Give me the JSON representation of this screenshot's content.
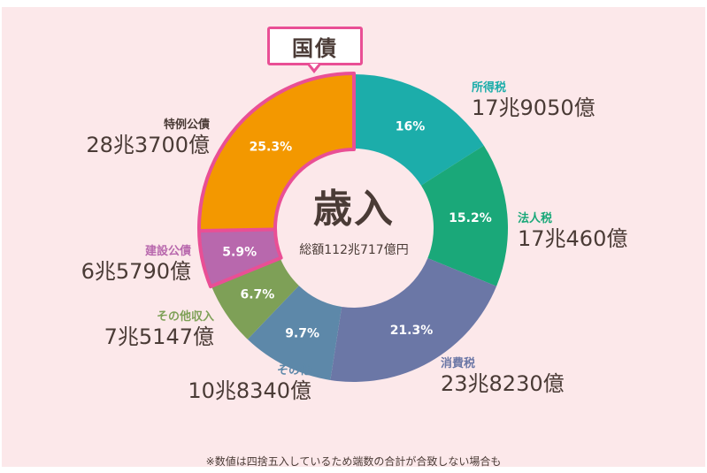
{
  "chart_data": {
    "type": "pie",
    "title": "歳入",
    "subtitle": "総額112兆717億円",
    "highlight_label": "国債",
    "slices": [
      {
        "name": "所得税",
        "amount": "17兆9050億",
        "percent": 16,
        "percent_label": "16%",
        "color": "#1cadaa"
      },
      {
        "name": "法人税",
        "amount": "17兆460億",
        "percent": 15.2,
        "percent_label": "15.2%",
        "color": "#1aa879"
      },
      {
        "name": "消費税",
        "amount": "23兆8230億",
        "percent": 21.3,
        "percent_label": "21.3%",
        "color": "#6b77a6"
      },
      {
        "name": "その他",
        "amount": "10兆8340億",
        "percent": 9.7,
        "percent_label": "9.7%",
        "color": "#5d88a9"
      },
      {
        "name": "その他収入",
        "amount": "7兆5147億",
        "percent": 6.7,
        "percent_label": "6.7%",
        "color": "#7ea057"
      },
      {
        "name": "建設公債",
        "amount": "6兆5790億",
        "percent": 5.9,
        "percent_label": "5.9%",
        "color": "#b868ad"
      },
      {
        "name": "特例公債",
        "amount": "28兆3700億",
        "percent": 25.3,
        "percent_label": "25.3%",
        "color": "#f39800"
      }
    ],
    "highlight_color": "#e94f95"
  },
  "note": "※数値は四捨五入しているため端数の合計が合致しない場合も"
}
